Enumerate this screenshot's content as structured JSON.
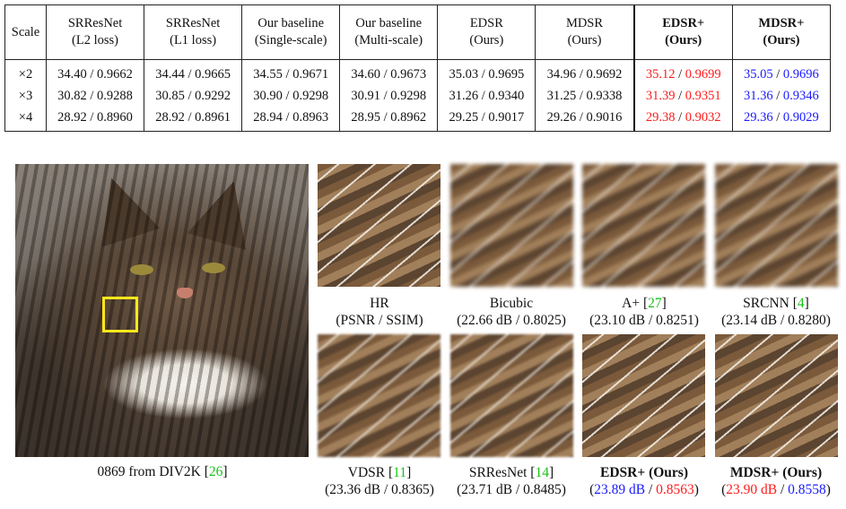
{
  "table": {
    "headers": [
      {
        "line1": "Scale",
        "line2": "",
        "bold": false
      },
      {
        "line1": "SRResNet",
        "line2": "(L2 loss)",
        "bold": false
      },
      {
        "line1": "SRResNet",
        "line2": "(L1 loss)",
        "bold": false
      },
      {
        "line1": "Our baseline",
        "line2": "(Single-scale)",
        "bold": false
      },
      {
        "line1": "Our baseline",
        "line2": "(Multi-scale)",
        "bold": false
      },
      {
        "line1": "EDSR",
        "line2": "(Ours)",
        "bold": false
      },
      {
        "line1": "MDSR",
        "line2": "(Ours)",
        "bold": false
      },
      {
        "line1": "EDSR+",
        "line2": "(Ours)",
        "bold": true
      },
      {
        "line1": "MDSR+",
        "line2": "(Ours)",
        "bold": true
      }
    ],
    "rows": [
      {
        "scale": "×2",
        "cells": [
          "34.40 / 0.9662",
          "34.44 / 0.9665",
          "34.55 / 0.9671",
          "34.60 / 0.9673",
          "35.03 / 0.9695",
          "34.96 / 0.9692"
        ],
        "edsr_plus": {
          "psnr": "35.12",
          "ssim": "0.9699"
        },
        "mdsr_plus": {
          "psnr": "35.05",
          "ssim": "0.9696"
        }
      },
      {
        "scale": "×3",
        "cells": [
          "30.82 / 0.9288",
          "30.85 / 0.9292",
          "30.90 / 0.9298",
          "30.91 / 0.9298",
          "31.26 / 0.9340",
          "31.25 / 0.9338"
        ],
        "edsr_plus": {
          "psnr": "31.39",
          "ssim": "0.9351"
        },
        "mdsr_plus": {
          "psnr": "31.36",
          "ssim": "0.9346"
        }
      },
      {
        "scale": "×4",
        "cells": [
          "28.92 / 0.8960",
          "28.92 / 0.8961",
          "28.94 / 0.8963",
          "28.95 / 0.8962",
          "29.25 / 0.9017",
          "29.26 / 0.9016"
        ],
        "edsr_plus": {
          "psnr": "29.38",
          "ssim": "0.9032"
        },
        "mdsr_plus": {
          "psnr": "29.36",
          "ssim": "0.9029"
        }
      }
    ],
    "separator": " / "
  },
  "figure": {
    "main_caption": {
      "text": "0869 from DIV2K [",
      "ref": "26",
      "close": "]"
    },
    "patches": [
      {
        "name": "HR",
        "ref": "",
        "metric": "(PSNR / SSIM)",
        "bold": false
      },
      {
        "name": "Bicubic",
        "ref": "",
        "metric": "(22.66 dB / 0.8025)",
        "bold": false
      },
      {
        "name": "A+ [",
        "ref": "27",
        "metric": "(23.10 dB / 0.8251)",
        "bold": false
      },
      {
        "name": "SRCNN [",
        "ref": "4",
        "metric": "(23.14 dB / 0.8280)",
        "bold": false
      },
      {
        "name": "VDSR [",
        "ref": "11",
        "metric": "(23.36 dB / 0.8365)",
        "bold": false
      },
      {
        "name": "SRResNet [",
        "ref": "14",
        "metric": "(23.71 dB / 0.8485)",
        "bold": false
      },
      {
        "name": "EDSR+ (Ours)",
        "ref": "",
        "metric_open": "(",
        "psnr": "23.89 dB",
        "sep": " / ",
        "ssim": "0.8563",
        "metric_close": ")",
        "bold": true
      },
      {
        "name": "MDSR+ (Ours)",
        "ref": "",
        "metric_open": "(",
        "psnr": "23.90 dB",
        "sep": " / ",
        "ssim": "0.8558",
        "metric_close": ")",
        "bold": true
      }
    ],
    "colors": {
      "best": "#ff1a1a",
      "second": "#1a1aff",
      "citation": "#18c018",
      "zoom_box": "#ffe81a"
    }
  }
}
